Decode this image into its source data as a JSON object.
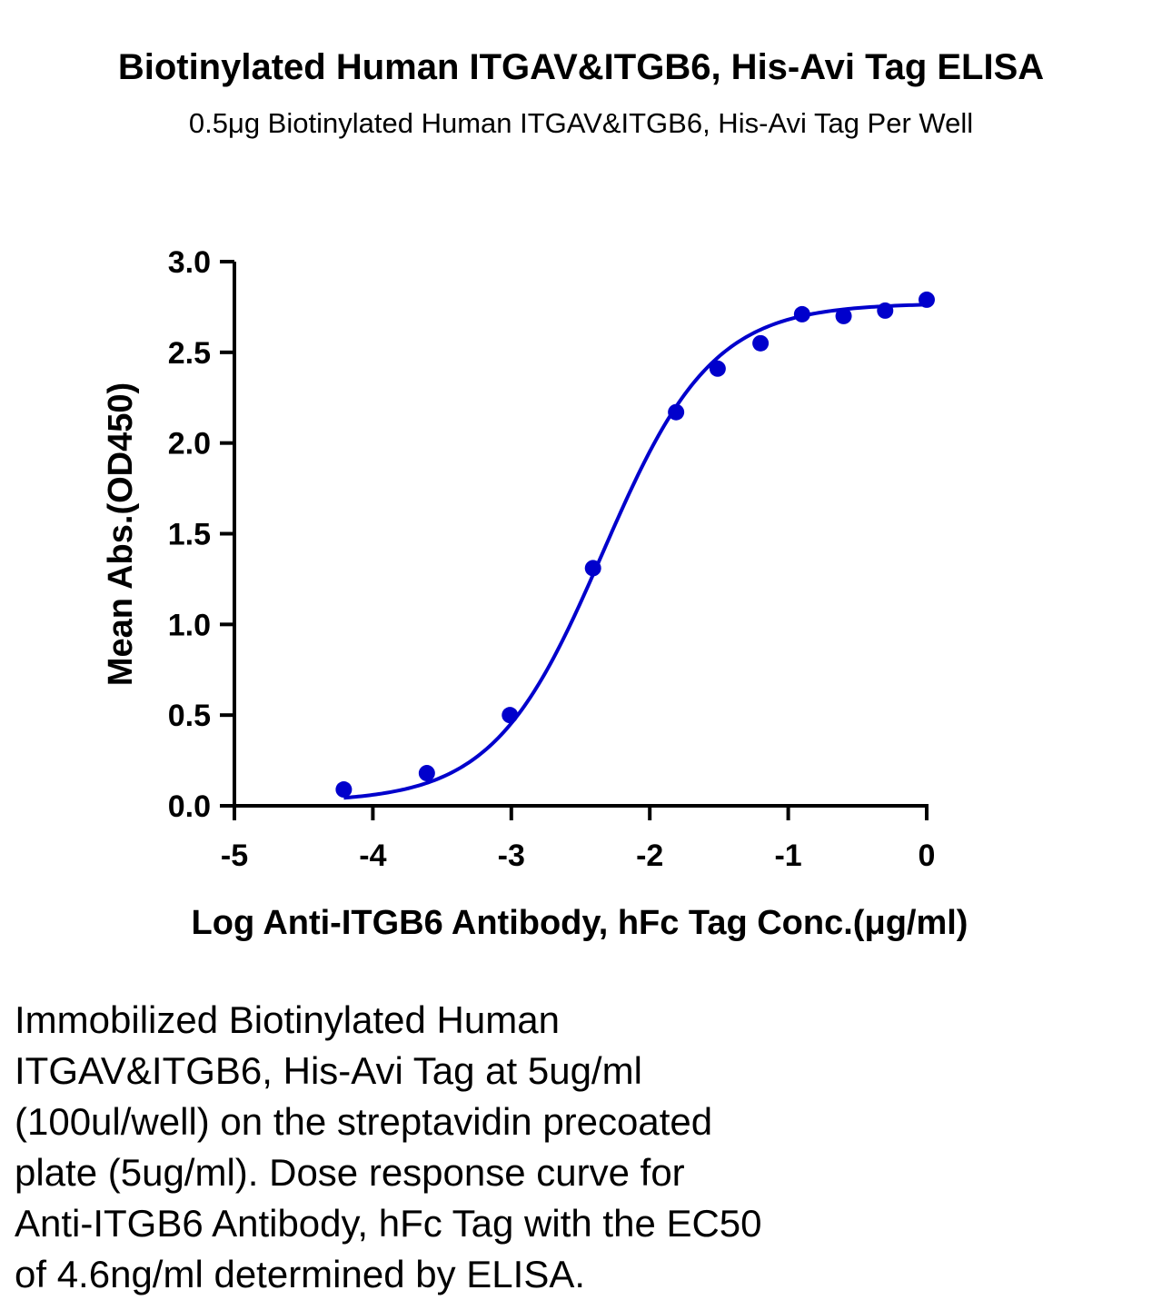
{
  "title": "Biotinylated Human ITGAV&ITGB6, His-Avi Tag ELISA",
  "subtitle": "0.5μg Biotinylated Human ITGAV&ITGB6, His-Avi Tag Per Well",
  "caption_lines": [
    "Immobilized Biotinylated Human",
    "ITGAV&ITGB6, His-Avi Tag at 5ug/ml",
    "(100ul/well) on the streptavidin precoated",
    "plate (5ug/ml). Dose response curve for",
    "Anti-ITGB6 Antibody, hFc Tag with the EC50",
    "of 4.6ng/ml determined by ELISA."
  ],
  "chart_data": {
    "type": "scatter",
    "title": "Biotinylated Human ITGAV&ITGB6, His-Avi Tag ELISA",
    "subtitle": "0.5μg Biotinylated Human ITGAV&ITGB6, His-Avi Tag Per Well",
    "xlabel": "Log Anti-ITGB6 Antibody, hFc Tag Conc.(μg/ml)",
    "ylabel": "Mean Abs.(OD450)",
    "xlim": [
      -5,
      0
    ],
    "ylim": [
      0,
      3.0
    ],
    "x_ticks": [
      "-5",
      "-4",
      "-3",
      "-2",
      "-1",
      "0"
    ],
    "y_ticks": [
      "0.0",
      "0.5",
      "1.0",
      "1.5",
      "2.0",
      "2.5",
      "3.0"
    ],
    "grid": false,
    "color": "#0000cc",
    "series": [
      {
        "x": [
          -4.21,
          -3.61,
          -3.01,
          -2.41,
          -1.81,
          -1.51,
          -1.2,
          -0.9,
          -0.6,
          -0.3,
          0.0
        ],
        "y": [
          0.09,
          0.18,
          0.5,
          1.31,
          2.17,
          2.41,
          2.55,
          2.71,
          2.7,
          2.73,
          2.79
        ]
      }
    ],
    "fit_curve": {
      "model": "4PL",
      "bottom": 0.02,
      "top": 2.77,
      "log_ec50": -2.34,
      "hill": 1.1
    }
  }
}
